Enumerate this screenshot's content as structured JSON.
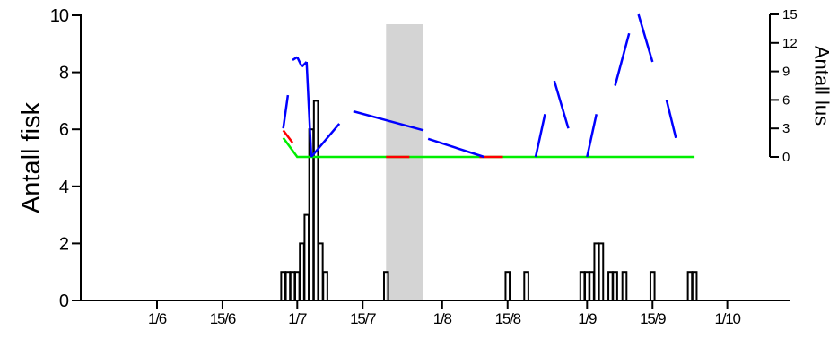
{
  "chart_data": {
    "type": "bar",
    "xlabel": "",
    "x_tick_labels": [
      "1/6",
      "15/6",
      "1/7",
      "15/7",
      "1/8",
      "15/8",
      "1/9",
      "15/9",
      "1/10"
    ],
    "y_left": {
      "label": "Antall fisk",
      "ylim": [
        0,
        10
      ],
      "ticks": [
        0,
        2,
        4,
        6,
        8,
        10
      ]
    },
    "y_right": {
      "label": "Antall lus",
      "ylim": [
        0,
        15
      ],
      "ticks": [
        0,
        3,
        6,
        9,
        12,
        15
      ]
    },
    "shaded_period": [
      "20/7",
      "28/7"
    ],
    "series": [
      {
        "kind": "bar",
        "axis": "left",
        "color": "#000000",
        "points": [
          {
            "date": "28/6",
            "value": 1
          },
          {
            "date": "29/6",
            "value": 1
          },
          {
            "date": "30/6",
            "value": 1
          },
          {
            "date": "1/7",
            "value": 1
          },
          {
            "date": "2/7",
            "value": 2
          },
          {
            "date": "3/7",
            "value": 3
          },
          {
            "date": "4/7",
            "value": 6
          },
          {
            "date": "5/7",
            "value": 7
          },
          {
            "date": "6/7",
            "value": 2
          },
          {
            "date": "7/7",
            "value": 1
          },
          {
            "date": "20/7",
            "value": 1
          },
          {
            "date": "15/8",
            "value": 1
          },
          {
            "date": "19/8",
            "value": 1
          },
          {
            "date": "31/8",
            "value": 1
          },
          {
            "date": "1/9",
            "value": 1
          },
          {
            "date": "2/9",
            "value": 1
          },
          {
            "date": "3/9",
            "value": 2
          },
          {
            "date": "4/9",
            "value": 2
          },
          {
            "date": "6/9",
            "value": 1
          },
          {
            "date": "7/9",
            "value": 1
          },
          {
            "date": "9/9",
            "value": 1
          },
          {
            "date": "15/9",
            "value": 1
          },
          {
            "date": "23/9",
            "value": 1
          },
          {
            "date": "24/9",
            "value": 1
          }
        ]
      },
      {
        "kind": "line",
        "axis": "right",
        "color": "#00ee00",
        "points": [
          [
            "28/6",
            2
          ],
          [
            "1/7",
            0
          ],
          [
            "24/9",
            0
          ]
        ]
      },
      {
        "kind": "segments",
        "axis": "right",
        "color": "#ff0000",
        "segments": [
          [
            [
              "28/6",
              2.8
            ],
            [
              "30/6",
              1.5
            ]
          ],
          [
            [
              "20/7",
              0
            ],
            [
              "25/7",
              0
            ]
          ],
          [
            [
              "9/8",
              0
            ],
            [
              "14/8",
              0
            ]
          ]
        ]
      },
      {
        "kind": "segments",
        "axis": "right",
        "color": "#0000ff",
        "segments": [
          [
            [
              "28/6",
              3
            ],
            [
              "29/6",
              6.5
            ]
          ],
          [
            [
              "30/6",
              10.2
            ],
            [
              "1/7",
              10.5
            ]
          ],
          [
            [
              "1/7",
              10.5
            ],
            [
              "2/7",
              9.5
            ]
          ],
          [
            [
              "2/7",
              9.5
            ],
            [
              "3/7",
              10
            ]
          ],
          [
            [
              "3/7",
              10
            ],
            [
              "4/7",
              0
            ]
          ],
          [
            [
              "4/7",
              0
            ],
            [
              "10/7",
              3.5
            ]
          ],
          [
            [
              "13/7",
              4.8
            ],
            [
              "28/7",
              2.8
            ]
          ],
          [
            [
              "29/7",
              1.9
            ],
            [
              "10/8",
              0
            ]
          ],
          [
            [
              "21/8",
              0
            ],
            [
              "23/8",
              4.5
            ]
          ],
          [
            [
              "25/8",
              8
            ],
            [
              "28/8",
              3
            ]
          ],
          [
            [
              "1/9",
              0
            ],
            [
              "3/9",
              4.5
            ]
          ],
          [
            [
              "7/9",
              7.5
            ],
            [
              "10/9",
              13
            ]
          ],
          [
            [
              "12/9",
              15
            ],
            [
              "15/9",
              10
            ]
          ],
          [
            [
              "18/9",
              6
            ],
            [
              "20/9",
              2
            ]
          ]
        ]
      }
    ],
    "grid": false,
    "legend": "none"
  }
}
